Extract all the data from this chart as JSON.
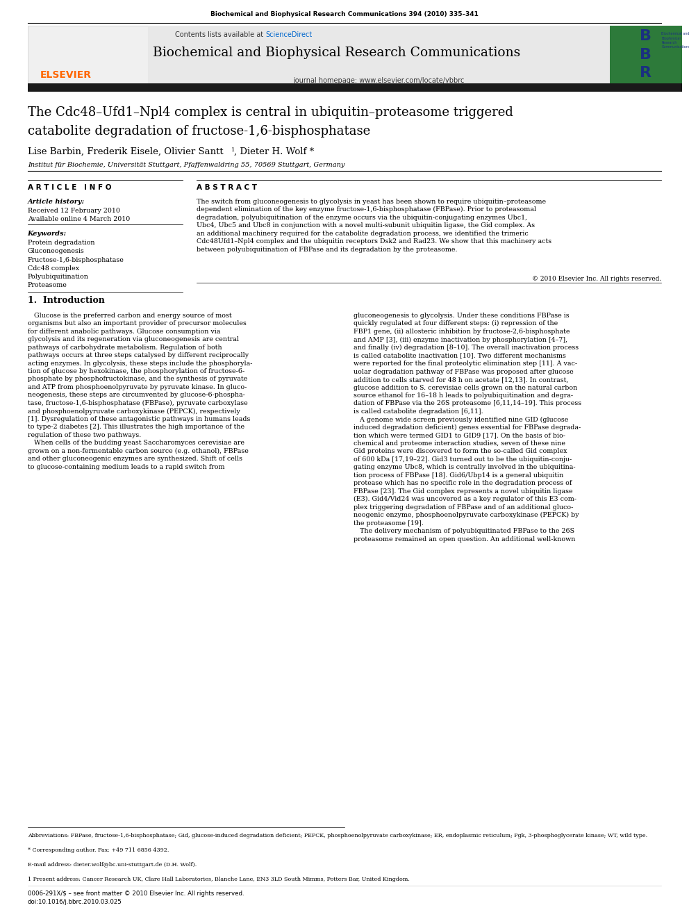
{
  "page_width": 9.92,
  "page_height": 13.23,
  "bg_color": "#ffffff",
  "journal_citation": "Biochemical and Biophysical Research Communications 394 (2010) 335–341",
  "journal_citation_color": "#000000",
  "header_bg": "#e8e8e8",
  "header_journal_name": "Biochemical and Biophysical Research Communications",
  "header_journal_url": "journal homepage: www.elsevier.com/locate/ybbrc",
  "header_contents": "Contents lists available at ",
  "header_sciencedirect": "ScienceDirect",
  "sciencedirect_color": "#0066cc",
  "dark_bar_color": "#1a1a1a",
  "elsevier_color": "#ff6600",
  "article_title_line1": "The Cdc48–Ufd1–Npl4 complex is central in ubiquitin–proteasome triggered",
  "article_title_line2": "catabolite degradation of fructose-1,6-bisphosphatase",
  "authors": "Lise Barbin, Frederik Eisele, Olivier Santt ",
  "authors_super": "1",
  "authors_end": ", Dieter H. Wolf *",
  "affiliation": "Institut für Biochemie, Universität Stuttgart, Pfaffenwaldring 55, 70569 Stuttgart, Germany",
  "article_info_label": "A R T I C L E   I N F O",
  "abstract_label": "A B S T R A C T",
  "article_history_label": "Article history:",
  "received": "Received 12 February 2010",
  "available": "Available online 4 March 2010",
  "keywords_label": "Keywords:",
  "keywords": [
    "Protein degradation",
    "Gluconeogenesis",
    "Fructose-1,6-bisphosphatase",
    "Cdc48 complex",
    "Polyubiquitination",
    "Proteasome"
  ],
  "abstract_text": "The switch from gluconeogenesis to glycolysis in yeast has been shown to require ubiquitin–proteasome dependent elimination of the key enzyme fructose-1,6-bisphosphatase (FBPase). Prior to proteasomal degradation, polyubiquitination of the enzyme occurs via the ubiquitin-conjugating enzymes Ubc1, Ubc4, Ubc5 and Ubc8 in conjunction with a novel multi-subunit ubiquitin ligase, the Gid complex. As an additional machinery required for the catabolite degradation process, we identified the trimeric Cdc48Ufd1-Npl4 complex and the ubiquitin receptors Dsk2 and Rad23. We show that this machinery acts between polyubiquitination of FBPase and its degradation by the proteasome.",
  "copyright": "© 2010 Elsevier Inc. All rights reserved.",
  "section1_title": "1.  Introduction",
  "footnote_abbrev": "Abbreviations: FBPase, fructose-1,6-bisphosphatase; Gid, glucose-induced degradation deficient; PEPCK, phosphoenolpyruvate carboxykinase; ER, endoplasmic reticulum; Pgk, 3-phosphoglycerate kinase; WT, wild type.",
  "footnote_corresponding": "* Corresponding author. Fax: +49 711 6856 4392.",
  "footnote_email": "E-mail address: dieter.wolf@bc.uni-stuttgart.de (D.H. Wolf).",
  "footnote_present": "1 Present address: Cancer Research UK, Clare Hall Laboratories, Blanche Lane, EN3 3LD South Mimms, Potters Bar, United Kingdom.",
  "footer_left": "0006-291X/$ – see front matter © 2010 Elsevier Inc. All rights reserved.",
  "footer_doi": "doi:10.1016/j.bbrc.2010.03.025"
}
